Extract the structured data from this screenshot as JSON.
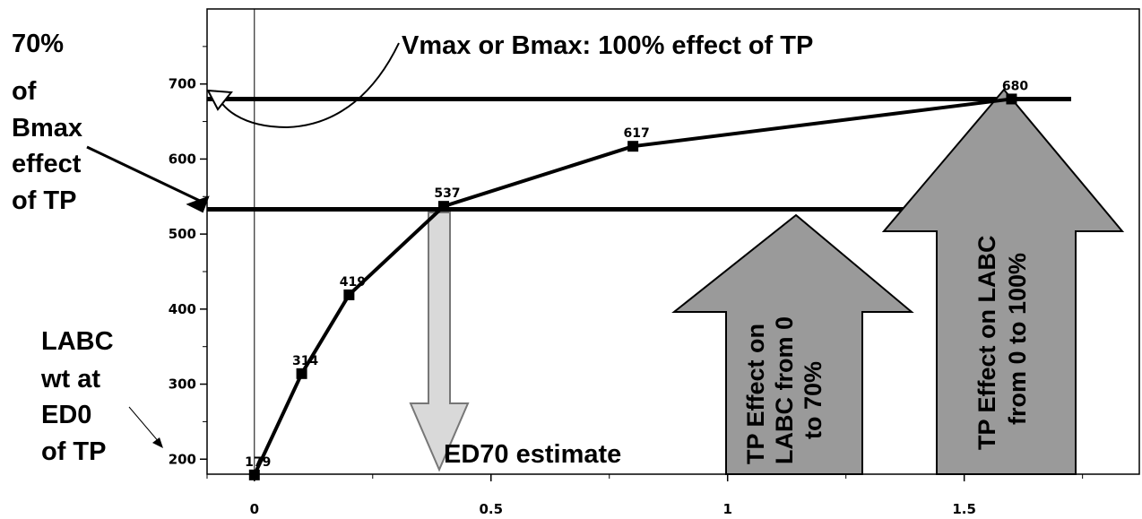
{
  "chart_data": {
    "type": "line",
    "title": "",
    "xlabel": "",
    "ylabel": "",
    "xlim": [
      -0.1,
      1.87
    ],
    "ylim": [
      180,
      800
    ],
    "x_ticks": [
      "0",
      "0.5",
      "1",
      "1.5"
    ],
    "y_ticks": [
      "200",
      "300",
      "400",
      "500",
      "600",
      "700"
    ],
    "series": [
      {
        "x": [
          0,
          0.1,
          0.2,
          0.4,
          0.8,
          1.6
        ],
        "values": [
          179,
          314,
          419,
          537,
          617,
          680
        ],
        "labels": [
          "179",
          "314",
          "419",
          "537",
          "617",
          "680"
        ]
      }
    ],
    "reference_lines": [
      {
        "y": 680,
        "label": "Vmax or Bmax: 100% effect of TP"
      },
      {
        "y": 533,
        "label": "70% of Bmax effect of TP"
      }
    ],
    "annotations": {
      "vmax": "Vmax or Bmax: 100% effect of TP",
      "seventy_lines": [
        "70%",
        "of",
        "Bmax",
        "effect",
        "of TP"
      ],
      "labc_lines": [
        "LABC",
        "wt at",
        "ED0",
        "of TP"
      ],
      "ed70": "ED70 estimate",
      "arrow70_lines": [
        "TP Effect on",
        "LABC  from 0",
        "to 70%"
      ],
      "arrow100_lines": [
        "TP Effect on LABC",
        "from 0 to 100%"
      ]
    },
    "grid": false
  }
}
